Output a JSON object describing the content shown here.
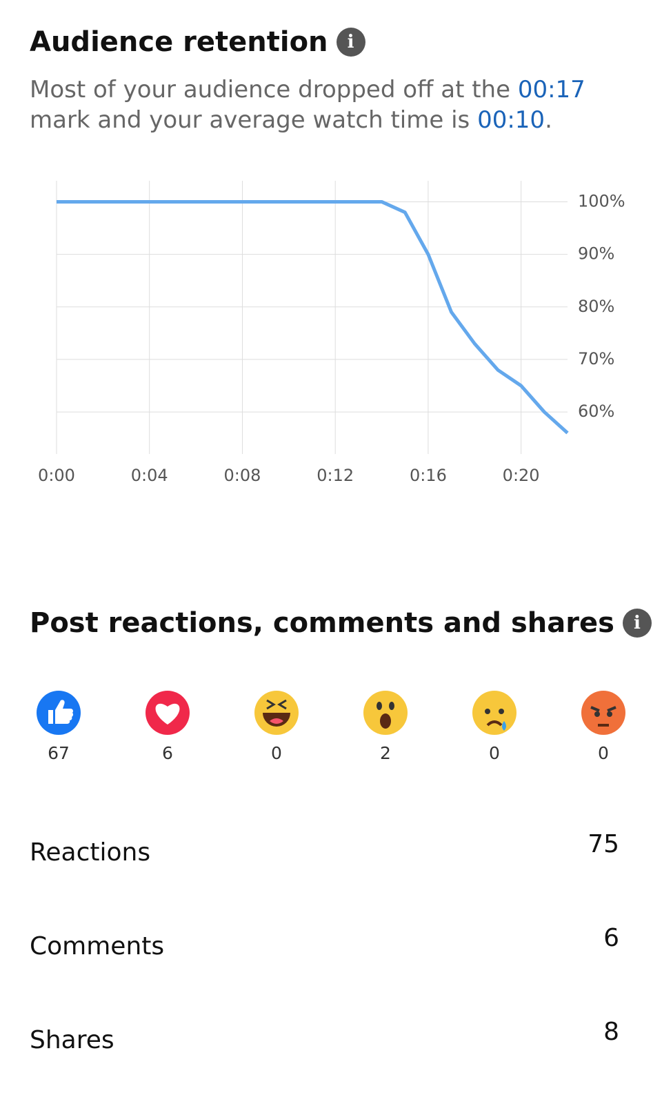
{
  "retention": {
    "title": "Audience retention",
    "description": [
      "Most of your audience dropped off at the ",
      "00:17",
      " mark and your average watch time is ",
      "00:10",
      "."
    ]
  },
  "chart_data": {
    "type": "line",
    "x": [
      0,
      14,
      15,
      16,
      17,
      18,
      19,
      20,
      21,
      22
    ],
    "series": [
      {
        "color": "#64a8ec",
        "values": [
          100,
          100,
          98,
          90,
          79,
          73,
          68,
          65,
          60,
          56
        ]
      }
    ],
    "xlim": [
      0,
      22
    ],
    "xticks": [
      {
        "value": 0,
        "label": "0:00"
      },
      {
        "value": 4,
        "label": "0:04"
      },
      {
        "value": 8,
        "label": "0:08"
      },
      {
        "value": 12,
        "label": "0:12"
      },
      {
        "value": 16,
        "label": "0:16"
      },
      {
        "value": 20,
        "label": "0:20"
      }
    ],
    "ylim": [
      52,
      104
    ],
    "yticks": [
      {
        "value": 60,
        "label": "60%"
      },
      {
        "value": 70,
        "label": "70%"
      },
      {
        "value": 80,
        "label": "80%"
      },
      {
        "value": 90,
        "label": "90%"
      },
      {
        "value": 100,
        "label": "100%"
      }
    ],
    "grid": true
  },
  "engagement": {
    "title": "Post reactions, comments and shares",
    "reactions": [
      67,
      6,
      0,
      2,
      0,
      0
    ],
    "rows": [
      {
        "label": "Reactions",
        "value": 75
      },
      {
        "label": "Comments",
        "value": 6
      },
      {
        "label": "Shares",
        "value": 8
      }
    ]
  }
}
